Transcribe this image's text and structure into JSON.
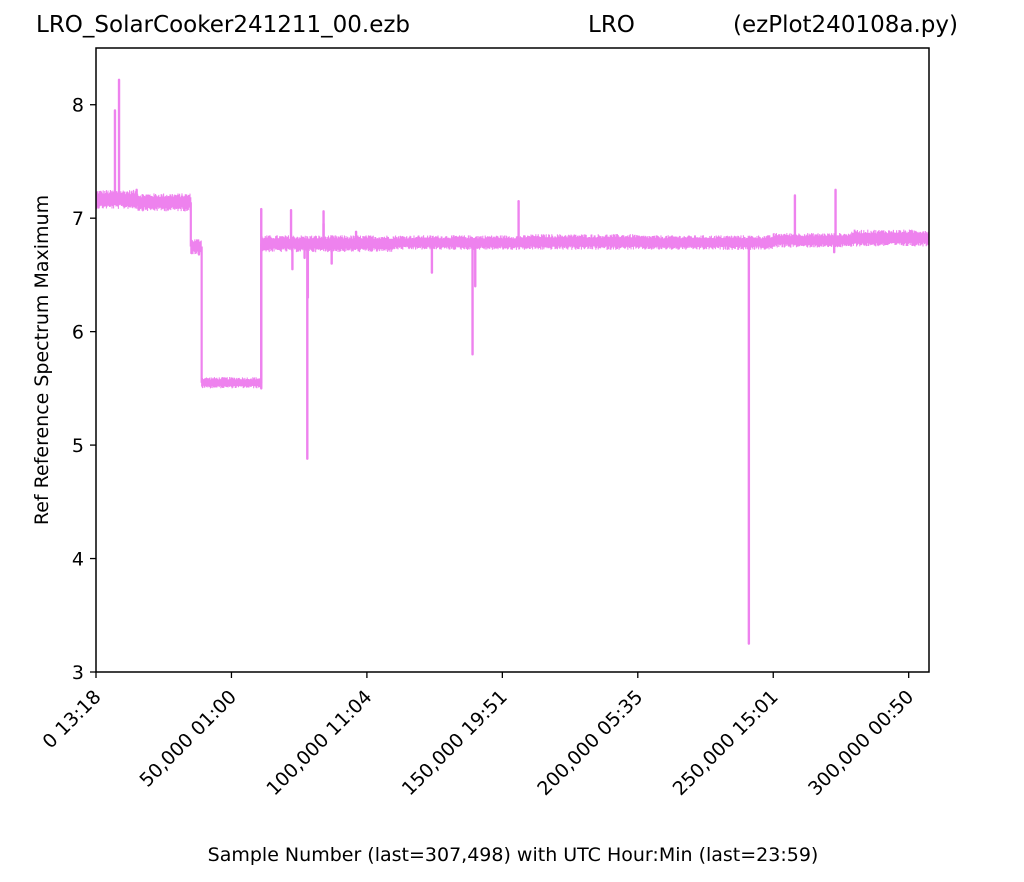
{
  "titles": {
    "left": "LRO_SolarCooker241211_00.ezb",
    "center": "LRO",
    "right": "(ezPlot240108a.py)"
  },
  "chart_data": {
    "type": "line",
    "xlabel": "Sample Number (last=307,498) with UTC Hour:Min (last=23:59)",
    "ylabel": "Ref Reference Spectrum Maximum",
    "xlim": [
      0,
      307498
    ],
    "ylim": [
      3,
      8.5
    ],
    "yticks": [
      3,
      4,
      5,
      6,
      7,
      8
    ],
    "xticks": [
      {
        "value": 0,
        "label": "0  13:18"
      },
      {
        "value": 50000,
        "label": "50,000  01:00"
      },
      {
        "value": 100000,
        "label": "100,000  11:04"
      },
      {
        "value": 150000,
        "label": "150,000  19:51"
      },
      {
        "value": 200000,
        "label": "200,000  05:35"
      },
      {
        "value": 250000,
        "label": "250,000  15:01"
      },
      {
        "value": 300000,
        "label": "300,000  00:50"
      }
    ],
    "grid": false,
    "series": [
      {
        "color": "#ee82ee",
        "bands": [
          {
            "x": [
              0,
              15500
            ],
            "low": 7.08,
            "high": 7.25
          },
          {
            "x": [
              15500,
              35000
            ],
            "low": 7.06,
            "high": 7.22
          },
          {
            "x": [
              35000,
              39000
            ],
            "low": 6.68,
            "high": 6.82
          },
          {
            "x": [
              39000,
              61000
            ],
            "low": 5.5,
            "high": 5.6
          },
          {
            "x": [
              61000,
              110000
            ],
            "low": 6.7,
            "high": 6.85
          },
          {
            "x": [
              110000,
              160000
            ],
            "low": 6.72,
            "high": 6.85
          },
          {
            "x": [
              160000,
              200000
            ],
            "low": 6.72,
            "high": 6.86
          },
          {
            "x": [
              200000,
              250000
            ],
            "low": 6.72,
            "high": 6.85
          },
          {
            "x": [
              250000,
              279000
            ],
            "low": 6.74,
            "high": 6.87
          },
          {
            "x": [
              279000,
              307498
            ],
            "low": 6.75,
            "high": 6.9
          }
        ],
        "spikes": [
          {
            "x": 7000,
            "y": 7.95
          },
          {
            "x": 8500,
            "y": 8.22
          },
          {
            "x": 15000,
            "y": 7.25
          },
          {
            "x": 38000,
            "y": 6.68
          },
          {
            "x": 61000,
            "y": 7.08
          },
          {
            "x": 61000,
            "y": 5.5
          },
          {
            "x": 61300,
            "y": 6.72
          },
          {
            "x": 72000,
            "y": 7.07
          },
          {
            "x": 72500,
            "y": 6.55
          },
          {
            "x": 84000,
            "y": 6.95
          },
          {
            "x": 77000,
            "y": 6.65
          },
          {
            "x": 87000,
            "y": 6.6
          },
          {
            "x": 78000,
            "y": 4.88
          },
          {
            "x": 78200,
            "y": 6.3
          },
          {
            "x": 84000,
            "y": 7.06
          },
          {
            "x": 96000,
            "y": 6.88
          },
          {
            "x": 124000,
            "y": 6.52
          },
          {
            "x": 139000,
            "y": 5.8
          },
          {
            "x": 140000,
            "y": 6.4
          },
          {
            "x": 156000,
            "y": 7.15
          },
          {
            "x": 241000,
            "y": 3.25
          },
          {
            "x": 258000,
            "y": 7.2
          },
          {
            "x": 273000,
            "y": 7.25
          },
          {
            "x": 272500,
            "y": 6.7
          }
        ]
      }
    ]
  }
}
